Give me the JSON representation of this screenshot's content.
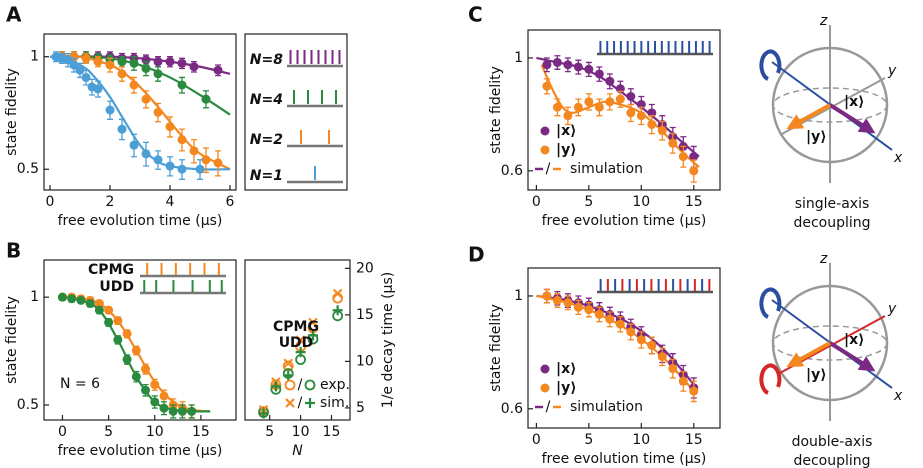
{
  "panel_labels": [
    "A",
    "B",
    "C",
    "D"
  ],
  "chart_data": [
    {
      "type": "scatter",
      "x_label": "free evolution time (µs)",
      "y_label": "state fidelity",
      "xlim": [
        -0.2,
        6.2
      ],
      "ylim": [
        0.44,
        1.15
      ],
      "xticks": [
        0,
        2,
        4,
        6
      ],
      "yticks": [
        0.5,
        1
      ],
      "y_log": true,
      "series": [
        {
          "name": "N=8",
          "color": "#7b2a84",
          "x": [
            0.4,
            0.8,
            1.2,
            1.6,
            2.0,
            2.4,
            2.8,
            3.2,
            3.6,
            4.0,
            4.4,
            4.8,
            5.6
          ],
          "values": [
            1,
            1,
            1,
            1,
            1,
            0.99,
            0.99,
            0.98,
            0.97,
            0.97,
            0.96,
            0.94,
            0.92
          ],
          "errors": [
            0.03,
            0.03,
            0.03,
            0.03,
            0.03,
            0.03,
            0.03,
            0.03,
            0.03,
            0.03,
            0.03,
            0.03,
            0.03
          ]
        },
        {
          "name": "N=4",
          "color": "#2a8a3e",
          "x": [
            0.4,
            0.8,
            1.2,
            1.6,
            2.0,
            2.4,
            2.8,
            3.2,
            3.6,
            4.4,
            5.2
          ],
          "values": [
            1,
            1,
            1,
            0.99,
            0.98,
            0.97,
            0.96,
            0.93,
            0.9,
            0.84,
            0.77
          ],
          "errors": [
            0.03,
            0.03,
            0.03,
            0.03,
            0.03,
            0.03,
            0.04,
            0.04,
            0.04,
            0.04,
            0.04
          ]
        },
        {
          "name": "N=2",
          "color": "#f5871f",
          "x": [
            0.4,
            0.8,
            1.2,
            1.6,
            2.0,
            2.4,
            2.8,
            3.2,
            3.6,
            4.0,
            4.4,
            4.8,
            5.2,
            5.6
          ],
          "values": [
            1,
            1,
            0.99,
            0.97,
            0.95,
            0.9,
            0.84,
            0.77,
            0.71,
            0.65,
            0.6,
            0.56,
            0.53,
            0.52
          ],
          "errors": [
            0.03,
            0.03,
            0.03,
            0.03,
            0.04,
            0.04,
            0.04,
            0.04,
            0.04,
            0.04,
            0.04,
            0.04,
            0.04,
            0.04
          ]
        },
        {
          "name": "N=1",
          "color": "#4c9fd6",
          "x": [
            0.2,
            0.4,
            0.6,
            0.8,
            1.0,
            1.2,
            1.4,
            1.6,
            2.0,
            2.4,
            2.8,
            3.2,
            3.6,
            4.0,
            4.4,
            5.0
          ],
          "values": [
            1,
            0.99,
            0.98,
            0.95,
            0.92,
            0.88,
            0.83,
            0.82,
            0.72,
            0.64,
            0.58,
            0.55,
            0.53,
            0.51,
            0.5,
            0.5
          ],
          "errors": [
            0.03,
            0.03,
            0.04,
            0.04,
            0.04,
            0.04,
            0.04,
            0.04,
            0.04,
            0.04,
            0.04,
            0.04,
            0.03,
            0.03,
            0.03,
            0.03
          ]
        }
      ],
      "curves": [
        {
          "color": "#7b2a84",
          "x": [
            0,
            2,
            3,
            4,
            5,
            6
          ],
          "values": [
            1,
            1,
            0.99,
            0.97,
            0.94,
            0.9
          ]
        },
        {
          "color": "#2a8a3e",
          "x": [
            0,
            1,
            2,
            3,
            4,
            5,
            6
          ],
          "values": [
            1,
            1,
            0.99,
            0.95,
            0.88,
            0.79,
            0.7
          ]
        },
        {
          "color": "#f5871f",
          "x": [
            0,
            1,
            2,
            2.5,
            3,
            3.5,
            4,
            4.5,
            5,
            6
          ],
          "values": [
            1,
            1,
            0.95,
            0.9,
            0.83,
            0.75,
            0.67,
            0.6,
            0.55,
            0.5
          ]
        },
        {
          "color": "#4c9fd6",
          "x": [
            0,
            1,
            1.5,
            2,
            2.5,
            3,
            3.5,
            4,
            5,
            6
          ],
          "values": [
            1,
            0.95,
            0.88,
            0.78,
            0.67,
            0.58,
            0.53,
            0.51,
            0.5,
            0.5
          ]
        }
      ]
    },
    {
      "type": "scatter",
      "x_label": "free evolution time (µs)",
      "y_label": "state fidelity",
      "annotation": "N = 6",
      "xlim": [
        -2,
        18.8
      ],
      "ylim": [
        0.454,
        1.27
      ],
      "xticks": [
        0,
        5,
        10,
        15
      ],
      "yticks": [
        0.5,
        1
      ],
      "y_log": true,
      "series": [
        {
          "name": "CPMG",
          "color": "#f5871f",
          "x": [
            0,
            1,
            2,
            3,
            4,
            5,
            6,
            7,
            8,
            9,
            10,
            11,
            12,
            13,
            14
          ],
          "values": [
            1,
            1,
            0.99,
            0.98,
            0.96,
            0.92,
            0.86,
            0.79,
            0.71,
            0.63,
            0.57,
            0.53,
            0.5,
            0.49,
            0.48
          ],
          "errors": [
            0.02,
            0.02,
            0.02,
            0.02,
            0.02,
            0.02,
            0.02,
            0.02,
            0.02,
            0.02,
            0.02,
            0.02,
            0.02,
            0.02,
            0.02
          ]
        },
        {
          "name": "UDD",
          "color": "#2a8a3e",
          "x": [
            0,
            1,
            2,
            3,
            4,
            5,
            6,
            7,
            8,
            9,
            10,
            11,
            12,
            13,
            14
          ],
          "values": [
            1,
            0.99,
            0.98,
            0.96,
            0.92,
            0.85,
            0.76,
            0.67,
            0.6,
            0.55,
            0.51,
            0.49,
            0.48,
            0.48,
            0.48
          ],
          "errors": [
            0.02,
            0.02,
            0.02,
            0.02,
            0.02,
            0.02,
            0.02,
            0.02,
            0.02,
            0.02,
            0.02,
            0.02,
            0.02,
            0.02,
            0.02
          ]
        }
      ],
      "curves": [
        {
          "color": "#f5871f",
          "x": [
            0,
            2,
            4,
            6,
            8,
            10,
            12,
            14,
            16
          ],
          "values": [
            1,
            0.99,
            0.96,
            0.86,
            0.71,
            0.58,
            0.51,
            0.485,
            0.48
          ]
        },
        {
          "color": "#2a8a3e",
          "x": [
            0,
            2,
            4,
            6,
            8,
            10,
            12,
            14,
            16
          ],
          "values": [
            1,
            0.98,
            0.92,
            0.76,
            0.6,
            0.51,
            0.485,
            0.48,
            0.48
          ]
        }
      ]
    },
    {
      "type": "scatter",
      "x_label": "N",
      "y_label": "1/e decay time (µs)",
      "y_axis_side": "right",
      "xlim": [
        1,
        18
      ],
      "ylim": [
        3.7,
        20.9
      ],
      "xticks": [
        5,
        10,
        15
      ],
      "yticks": [
        5,
        10,
        15,
        20
      ],
      "legend_labels": [
        "CPMG",
        "UDD"
      ],
      "legend_kinds": [
        "exp.",
        "sim."
      ],
      "legend_separator": "/",
      "series": [
        {
          "color": "#f5871f",
          "marker": "circle-open",
          "x": [
            4,
            6,
            8,
            10,
            12,
            16
          ],
          "values": [
            4.6,
            7.5,
            9.5,
            11.6,
            13.6,
            16.8
          ]
        },
        {
          "color": "#2a8a3e",
          "marker": "circle-open",
          "x": [
            4,
            6,
            8,
            10,
            12,
            16
          ],
          "values": [
            4.5,
            7,
            8.7,
            10.2,
            12.4,
            14.9
          ]
        },
        {
          "color": "#f5871f",
          "marker": "x",
          "x": [
            4,
            6,
            8,
            10,
            12,
            16
          ],
          "values": [
            4.8,
            7.8,
            9.8,
            12.3,
            14.2,
            17.3
          ]
        },
        {
          "color": "#2a8a3e",
          "marker": "plus",
          "x": [
            4,
            6,
            8,
            10,
            12,
            16
          ],
          "values": [
            4.4,
            7.3,
            8.5,
            11,
            12.8,
            15.5
          ]
        }
      ]
    },
    {
      "type": "scatter",
      "x_label": "free evolution time (µs)",
      "y_label": "state fidelity",
      "xlim": [
        -0.8,
        17.5
      ],
      "ylim": [
        0.55,
        1.135
      ],
      "xticks": [
        0,
        5,
        10,
        15
      ],
      "yticks": [
        0.6,
        1
      ],
      "y_log": true,
      "curve_label": "simulation",
      "legend_separator": "/",
      "series": [
        {
          "name": "|x⟩",
          "color": "#7b2a84",
          "x": [
            1,
            2,
            3,
            4,
            5,
            6,
            7,
            8,
            9,
            10,
            11,
            12,
            13,
            14,
            15
          ],
          "values": [
            0.97,
            0.98,
            0.97,
            0.96,
            0.95,
            0.93,
            0.9,
            0.87,
            0.84,
            0.81,
            0.78,
            0.74,
            0.7,
            0.67,
            0.64
          ],
          "errors": [
            0.03,
            0.03,
            0.03,
            0.03,
            0.03,
            0.03,
            0.03,
            0.03,
            0.03,
            0.03,
            0.03,
            0.03,
            0.03,
            0.03,
            0.03
          ]
        },
        {
          "name": "|y⟩",
          "color": "#f5871f",
          "x": [
            1,
            2,
            3,
            4,
            5,
            6,
            7,
            8,
            9,
            10,
            11,
            12,
            13,
            14,
            15
          ],
          "values": [
            0.88,
            0.8,
            0.77,
            0.8,
            0.82,
            0.8,
            0.82,
            0.83,
            0.78,
            0.77,
            0.74,
            0.72,
            0.68,
            0.64,
            0.6
          ],
          "errors": [
            0.03,
            0.03,
            0.03,
            0.03,
            0.03,
            0.03,
            0.03,
            0.03,
            0.03,
            0.03,
            0.03,
            0.03,
            0.03,
            0.03,
            0.03
          ]
        }
      ],
      "curves": [
        {
          "color": "#7b2a84",
          "x": [
            0,
            2,
            4,
            6,
            8,
            10,
            12,
            14,
            15.5
          ],
          "values": [
            1,
            0.98,
            0.96,
            0.92,
            0.86,
            0.8,
            0.74,
            0.68,
            0.64
          ]
        },
        {
          "color": "#f5871f",
          "x": [
            0.5,
            1.5,
            2.5,
            3.5,
            5,
            6.5,
            8,
            9.5,
            11,
            12.5,
            14,
            15.5
          ],
          "values": [
            0.97,
            0.87,
            0.8,
            0.78,
            0.8,
            0.82,
            0.81,
            0.79,
            0.75,
            0.7,
            0.65,
            0.61
          ]
        }
      ]
    },
    {
      "type": "scatter",
      "x_label": "free evolution time (µs)",
      "y_label": "state fidelity",
      "xlim": [
        -0.8,
        17.5
      ],
      "ylim": [
        0.55,
        1.135
      ],
      "xticks": [
        0,
        5,
        10,
        15
      ],
      "yticks": [
        0.6,
        1
      ],
      "y_log": true,
      "curve_label": "simulation",
      "legend_separator": "/",
      "series": [
        {
          "name": "|x⟩",
          "color": "#7b2a84",
          "x": [
            1,
            2,
            3,
            4,
            5,
            6,
            7,
            8,
            9,
            10,
            11,
            12,
            13,
            14,
            15
          ],
          "values": [
            1,
            0.99,
            0.98,
            0.97,
            0.96,
            0.94,
            0.92,
            0.9,
            0.87,
            0.84,
            0.8,
            0.77,
            0.74,
            0.7,
            0.66
          ],
          "errors": [
            0.03,
            0.03,
            0.03,
            0.03,
            0.03,
            0.03,
            0.03,
            0.03,
            0.03,
            0.03,
            0.03,
            0.03,
            0.03,
            0.03,
            0.03
          ]
        },
        {
          "name": "|y⟩",
          "color": "#f5871f",
          "x": [
            1,
            2,
            3,
            4,
            5,
            6,
            7,
            8,
            9,
            10,
            11,
            12,
            13,
            14,
            15
          ],
          "values": [
            1,
            0.98,
            0.97,
            0.95,
            0.94,
            0.92,
            0.9,
            0.88,
            0.85,
            0.82,
            0.8,
            0.76,
            0.72,
            0.68,
            0.65
          ],
          "errors": [
            0.03,
            0.03,
            0.03,
            0.03,
            0.03,
            0.03,
            0.03,
            0.03,
            0.03,
            0.03,
            0.03,
            0.03,
            0.03,
            0.03,
            0.03
          ]
        }
      ],
      "curves": [
        {
          "color": "#7b2a84",
          "x": [
            0,
            3,
            6,
            9,
            12,
            15
          ],
          "values": [
            1,
            0.98,
            0.94,
            0.88,
            0.79,
            0.67
          ]
        },
        {
          "color": "#f5871f",
          "x": [
            0,
            3,
            6,
            9,
            12,
            15
          ],
          "values": [
            1,
            0.97,
            0.92,
            0.85,
            0.76,
            0.65
          ]
        }
      ]
    }
  ],
  "diagrams": [
    {
      "axes": [
        "z",
        "y",
        "x"
      ],
      "states": [
        "|x⟩",
        "|y⟩"
      ],
      "caption": [
        "single-axis",
        "decoupling"
      ]
    },
    {
      "axes": [
        "z",
        "y",
        "x"
      ],
      "states": [
        "|x⟩",
        "|y⟩"
      ],
      "caption": [
        "double-axis",
        "decoupling"
      ]
    }
  ]
}
